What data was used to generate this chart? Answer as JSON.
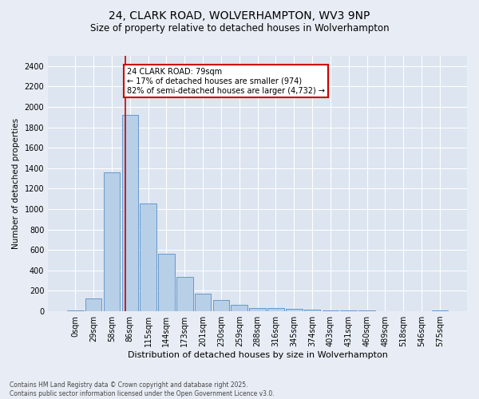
{
  "title": "24, CLARK ROAD, WOLVERHAMPTON, WV3 9NP",
  "subtitle": "Size of property relative to detached houses in Wolverhampton",
  "xlabel": "Distribution of detached houses by size in Wolverhampton",
  "ylabel": "Number of detached properties",
  "footer": "Contains HM Land Registry data © Crown copyright and database right 2025.\nContains public sector information licensed under the Open Government Licence v3.0.",
  "bar_labels": [
    "0sqm",
    "29sqm",
    "58sqm",
    "86sqm",
    "115sqm",
    "144sqm",
    "173sqm",
    "201sqm",
    "230sqm",
    "259sqm",
    "288sqm",
    "316sqm",
    "345sqm",
    "374sqm",
    "403sqm",
    "431sqm",
    "460sqm",
    "489sqm",
    "518sqm",
    "546sqm",
    "575sqm"
  ],
  "bar_values": [
    10,
    125,
    1360,
    1920,
    1055,
    560,
    335,
    170,
    110,
    60,
    35,
    28,
    22,
    15,
    10,
    5,
    5,
    3,
    3,
    1,
    10
  ],
  "bar_color": "#b8cfe8",
  "bar_edge_color": "#6699cc",
  "ylim": [
    0,
    2500
  ],
  "yticks": [
    0,
    200,
    400,
    600,
    800,
    1000,
    1200,
    1400,
    1600,
    1800,
    2000,
    2200,
    2400
  ],
  "vline_x": 2.73,
  "vline_color": "#cc0000",
  "annotation_text": "24 CLARK ROAD: 79sqm\n← 17% of detached houses are smaller (974)\n82% of semi-detached houses are larger (4,732) →",
  "annotation_box_color": "#cc0000",
  "bg_color": "#e8edf5",
  "plot_bg_color": "#dce5f0",
  "title_fontsize": 10,
  "subtitle_fontsize": 8.5,
  "xlabel_fontsize": 8,
  "ylabel_fontsize": 7.5,
  "tick_fontsize": 7,
  "footer_fontsize": 5.5,
  "annotation_fontsize": 7
}
